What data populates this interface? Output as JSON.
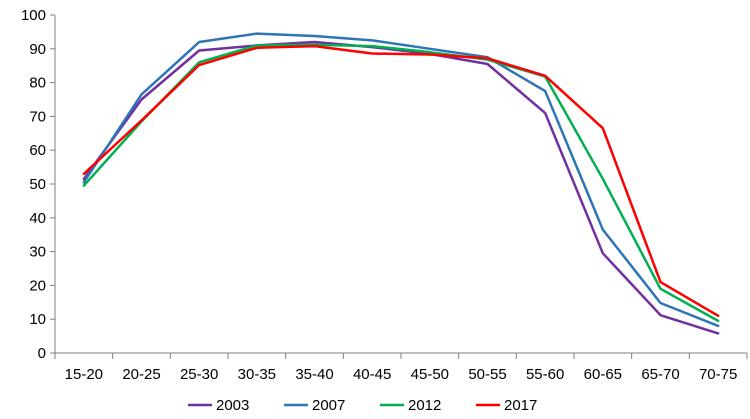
{
  "chart_data": {
    "type": "line",
    "title": "",
    "xlabel": "",
    "ylabel": "",
    "categories": [
      "15-20",
      "20-25",
      "25-30",
      "30-35",
      "35-40",
      "40-45",
      "45-50",
      "50-55",
      "55-60",
      "60-65",
      "65-70",
      "70-75"
    ],
    "ylim": [
      0,
      100
    ],
    "yticks": [
      0,
      10,
      20,
      30,
      40,
      50,
      60,
      70,
      80,
      90,
      100
    ],
    "grid": false,
    "legend": "bottom",
    "series": [
      {
        "name": "2003",
        "color": "#7030A0",
        "values": [
          51.5,
          75,
          89.5,
          91,
          92,
          90.5,
          88.5,
          85.5,
          71,
          29.5,
          11.2,
          5.8
        ]
      },
      {
        "name": "2007",
        "color": "#2E75B6",
        "values": [
          50.5,
          76.5,
          92,
          94.5,
          93.8,
          92.5,
          90,
          87.5,
          77.5,
          36.5,
          14.8,
          8
        ]
      },
      {
        "name": "2012",
        "color": "#00B050",
        "values": [
          49.5,
          68.5,
          86,
          91,
          91.2,
          90.8,
          89,
          86.8,
          81.8,
          51.5,
          19,
          9.5
        ]
      },
      {
        "name": "2017",
        "color": "#FF0000",
        "values": [
          53,
          68.8,
          85.2,
          90.3,
          90.8,
          88.6,
          88.3,
          87.2,
          82,
          66.5,
          21,
          11
        ]
      }
    ]
  }
}
